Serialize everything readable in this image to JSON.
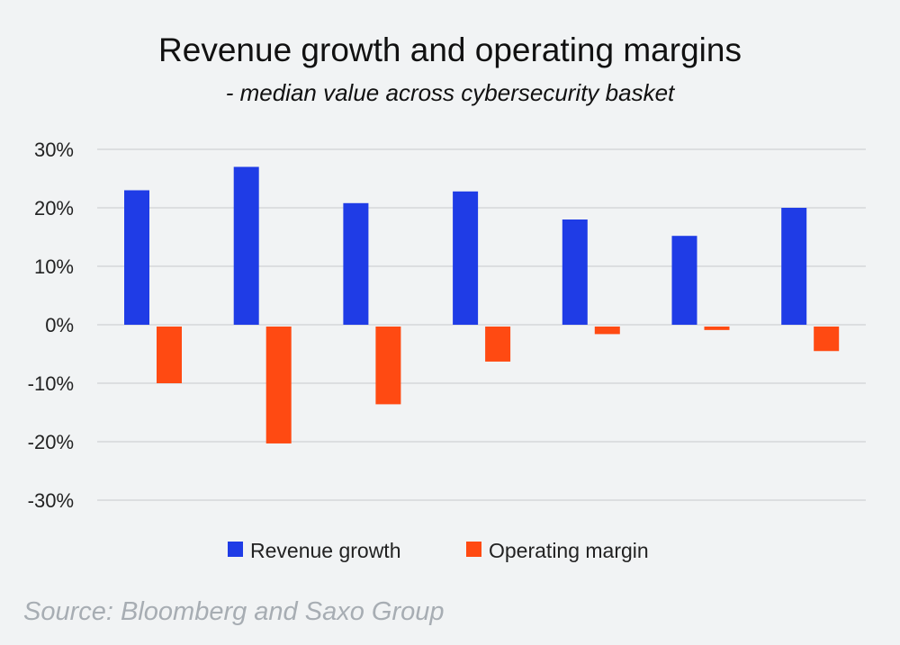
{
  "colors": {
    "background": "#f1f3f4",
    "revenue_growth": "#1f3ce6",
    "operating_margin": "#ff4a12",
    "source": "#a7adb3"
  },
  "chart_data": {
    "type": "bar",
    "title": "Revenue growth and operating margins",
    "subtitle": "- median value across cybersecurity basket",
    "categories": [
      "",
      "",
      "",
      "",
      "",
      "",
      ""
    ],
    "series": [
      {
        "name": "Revenue growth",
        "color": "#1f3ce6",
        "values": [
          23,
          27,
          20.8,
          22.8,
          18,
          15.2,
          20
        ]
      },
      {
        "name": "Operating margin",
        "color": "#ff4a12",
        "values": [
          -10,
          -20.3,
          -13.6,
          -6.3,
          -1.6,
          -0.9,
          -4.5
        ]
      }
    ],
    "xlabel": "",
    "ylabel": "",
    "ylim": [
      -30,
      30
    ],
    "yticks": [
      30,
      20,
      10,
      0,
      -10,
      -20,
      -30
    ],
    "ytick_labels": [
      "30%",
      "20%",
      "10%",
      "0%",
      "-10%",
      "-20%",
      "-30%"
    ],
    "grid": true,
    "legend": "bottom",
    "source": "Source: Bloomberg and Saxo Group"
  }
}
